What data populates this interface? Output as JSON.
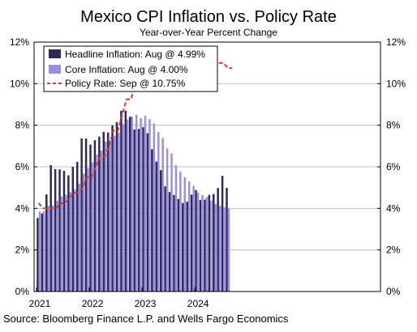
{
  "chart_data": {
    "type": "bar+line",
    "title": "Mexico CPI Inflation vs. Policy Rate",
    "subtitle": "Year-over-Year Percent Change",
    "source": "Source: Bloomberg Finance L.P. and Wells Fargo Economics",
    "ylim": [
      0,
      12
    ],
    "y_ticks": [
      "0%",
      "2%",
      "4%",
      "6%",
      "8%",
      "10%",
      "12%"
    ],
    "x_ticks": [
      "2021",
      "2022",
      "2023",
      "2024"
    ],
    "legend_placement": "top-left",
    "months": [
      "2021-01",
      "2021-02",
      "2021-03",
      "2021-04",
      "2021-05",
      "2021-06",
      "2021-07",
      "2021-08",
      "2021-09",
      "2021-10",
      "2021-11",
      "2021-12",
      "2022-01",
      "2022-02",
      "2022-03",
      "2022-04",
      "2022-05",
      "2022-06",
      "2022-07",
      "2022-08",
      "2022-09",
      "2022-10",
      "2022-11",
      "2022-12",
      "2023-01",
      "2023-02",
      "2023-03",
      "2023-04",
      "2023-05",
      "2023-06",
      "2023-07",
      "2023-08",
      "2023-09",
      "2023-10",
      "2023-11",
      "2023-12",
      "2024-01",
      "2024-02",
      "2024-03",
      "2024-04",
      "2024-05",
      "2024-06",
      "2024-07",
      "2024-08",
      "2024-09"
    ],
    "series": [
      {
        "name": "Headline Inflation: Aug @ 4.99%",
        "kind": "bar",
        "color": "#2e2a5c",
        "values": [
          3.54,
          3.76,
          4.67,
          6.08,
          5.89,
          5.88,
          5.81,
          5.59,
          6.0,
          6.24,
          7.37,
          7.36,
          7.07,
          7.28,
          7.45,
          7.68,
          7.65,
          7.99,
          8.15,
          8.7,
          8.7,
          8.41,
          7.8,
          7.82,
          7.91,
          7.62,
          6.85,
          6.25,
          5.84,
          5.06,
          4.79,
          4.64,
          4.45,
          4.26,
          4.32,
          4.66,
          4.88,
          4.4,
          4.42,
          4.65,
          4.69,
          4.98,
          5.57,
          4.99
        ]
      },
      {
        "name": "Core Inflation: Aug @ 4.00%",
        "kind": "bar",
        "color": "#9b8fdf",
        "values": [
          3.84,
          3.87,
          4.12,
          4.13,
          4.37,
          4.58,
          4.66,
          4.78,
          4.92,
          5.19,
          5.67,
          5.94,
          6.21,
          6.59,
          6.78,
          7.22,
          7.28,
          7.49,
          7.65,
          8.05,
          8.28,
          8.42,
          8.51,
          8.35,
          8.45,
          8.29,
          8.09,
          7.67,
          7.39,
          6.89,
          6.64,
          6.08,
          5.76,
          5.5,
          5.3,
          5.09,
          4.76,
          4.64,
          4.55,
          4.37,
          4.21,
          4.13,
          4.05,
          4.0
        ]
      },
      {
        "name": "Policy Rate: Sep @ 10.75%",
        "kind": "line",
        "color": "#d83a2a",
        "values": [
          4.25,
          4.0,
          4.0,
          4.0,
          4.0,
          4.25,
          4.25,
          4.5,
          4.75,
          4.75,
          5.0,
          5.5,
          5.5,
          6.0,
          6.5,
          6.5,
          7.0,
          7.75,
          7.75,
          8.5,
          9.25,
          9.25,
          10.0,
          10.5,
          10.5,
          11.0,
          11.25,
          11.25,
          11.25,
          11.25,
          11.25,
          11.25,
          11.25,
          11.25,
          11.25,
          11.25,
          11.25,
          11.25,
          11.0,
          11.0,
          11.0,
          11.0,
          11.0,
          10.75,
          10.75
        ]
      }
    ]
  }
}
